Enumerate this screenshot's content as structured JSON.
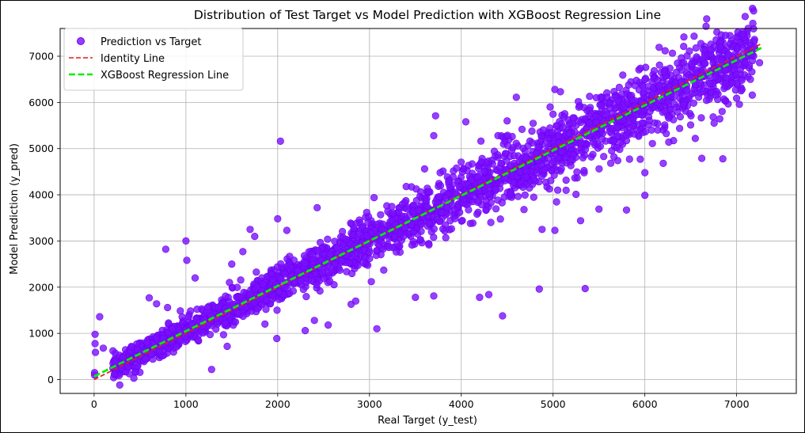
{
  "chart_data": {
    "type": "scatter",
    "title": "Distribution of Test Target vs Model Prediction with XGBoost Regression Line",
    "xlabel": "Real Target (y_test)",
    "ylabel": "Model Prediction (y_pred)",
    "xlim": [
      -370,
      7650
    ],
    "ylim": [
      -300,
      7600
    ],
    "xticks": [
      0,
      1000,
      2000,
      3000,
      4000,
      5000,
      6000,
      7000
    ],
    "yticks": [
      0,
      1000,
      2000,
      3000,
      4000,
      5000,
      6000,
      7000
    ],
    "grid": true,
    "legend_position": "top-left",
    "series": [
      {
        "name": "Prediction vs Target",
        "kind": "scatter",
        "color": "#7a0fff",
        "points": [
          [
            5,
            100
          ],
          [
            5,
            150
          ],
          [
            10,
            980
          ],
          [
            10,
            780
          ],
          [
            15,
            590
          ],
          [
            60,
            1360
          ],
          [
            100,
            680
          ],
          [
            230,
            380
          ],
          [
            300,
            250
          ],
          [
            450,
            160
          ],
          [
            600,
            1770
          ],
          [
            680,
            1640
          ],
          [
            780,
            2820
          ],
          [
            800,
            1560
          ],
          [
            1000,
            3000
          ],
          [
            1010,
            2580
          ],
          [
            1100,
            2200
          ],
          [
            1280,
            220
          ],
          [
            1450,
            720
          ],
          [
            1500,
            2500
          ],
          [
            1620,
            2770
          ],
          [
            1700,
            3250
          ],
          [
            1750,
            3100
          ],
          [
            1990,
            890
          ],
          [
            2000,
            3480
          ],
          [
            2030,
            5160
          ],
          [
            2100,
            3230
          ],
          [
            2300,
            1060
          ],
          [
            2400,
            1280
          ],
          [
            2430,
            3720
          ],
          [
            2550,
            1180
          ],
          [
            2800,
            1630
          ],
          [
            2850,
            1700
          ],
          [
            2970,
            3620
          ],
          [
            3020,
            2120
          ],
          [
            3050,
            3940
          ],
          [
            3080,
            1100
          ],
          [
            3400,
            4180
          ],
          [
            3500,
            1780
          ],
          [
            3600,
            4560
          ],
          [
            3700,
            5280
          ],
          [
            3720,
            5710
          ],
          [
            3700,
            1810
          ],
          [
            4050,
            5580
          ],
          [
            4100,
            3380
          ],
          [
            4200,
            1780
          ],
          [
            4300,
            1840
          ],
          [
            4400,
            5280
          ],
          [
            4450,
            1380
          ],
          [
            4500,
            5600
          ],
          [
            4600,
            6110
          ],
          [
            4850,
            1960
          ],
          [
            4880,
            3250
          ],
          [
            5020,
            3230
          ],
          [
            5020,
            6280
          ],
          [
            5080,
            6230
          ],
          [
            5250,
            4010
          ],
          [
            5300,
            3440
          ],
          [
            5350,
            1970
          ],
          [
            5500,
            3690
          ],
          [
            5800,
            3670
          ],
          [
            5950,
            4770
          ],
          [
            6000,
            4480
          ],
          [
            6000,
            3990
          ],
          [
            6200,
            4680
          ],
          [
            6550,
            5220
          ],
          [
            6620,
            4790
          ],
          [
            6850,
            4780
          ],
          [
            7000,
            6090
          ],
          [
            7150,
            6500
          ],
          [
            7250,
            6860
          ]
        ]
      },
      {
        "name": "Identity Line",
        "kind": "line",
        "style": "dashed",
        "color": "#e41a1c",
        "from": [
          0,
          0
        ],
        "to": [
          7280,
          7280
        ]
      },
      {
        "name": "XGBoost Regression Line",
        "kind": "line",
        "style": "dashed",
        "color": "#00ee00",
        "from": [
          0,
          70
        ],
        "to": [
          7280,
          7190
        ]
      }
    ]
  }
}
